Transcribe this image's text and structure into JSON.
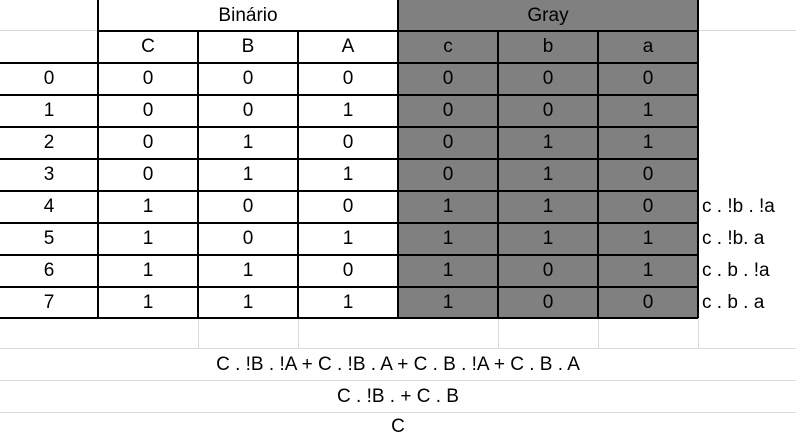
{
  "header": {
    "binary_title": "Binário",
    "gray_title": "Gray"
  },
  "columns": {
    "binary": [
      "C",
      "B",
      "A"
    ],
    "gray": [
      "c",
      "b",
      "a"
    ]
  },
  "rows": [
    {
      "index": "0",
      "bin": [
        "0",
        "0",
        "0"
      ],
      "gray": [
        "0",
        "0",
        "0"
      ],
      "term": ""
    },
    {
      "index": "1",
      "bin": [
        "0",
        "0",
        "1"
      ],
      "gray": [
        "0",
        "0",
        "1"
      ],
      "term": ""
    },
    {
      "index": "2",
      "bin": [
        "0",
        "1",
        "0"
      ],
      "gray": [
        "0",
        "1",
        "1"
      ],
      "term": ""
    },
    {
      "index": "3",
      "bin": [
        "0",
        "1",
        "1"
      ],
      "gray": [
        "0",
        "1",
        "0"
      ],
      "term": ""
    },
    {
      "index": "4",
      "bin": [
        "1",
        "0",
        "0"
      ],
      "gray": [
        "1",
        "1",
        "0"
      ],
      "term": "c . !b . !a"
    },
    {
      "index": "5",
      "bin": [
        "1",
        "0",
        "1"
      ],
      "gray": [
        "1",
        "1",
        "1"
      ],
      "term": "c . !b. a"
    },
    {
      "index": "6",
      "bin": [
        "1",
        "1",
        "0"
      ],
      "gray": [
        "1",
        "0",
        "1"
      ],
      "term": "c . b . !a"
    },
    {
      "index": "7",
      "bin": [
        "1",
        "1",
        "1"
      ],
      "gray": [
        "1",
        "0",
        "0"
      ],
      "term": "c . b . a"
    }
  ],
  "formulas": [
    "C . !B . !A + C . !B . A + C . B . !A + C . B . A",
    "C . !B . + C . B",
    "C"
  ],
  "colors": {
    "gray_fill": "#808080",
    "border": "#000000",
    "gridline": "#d9d9d9"
  }
}
